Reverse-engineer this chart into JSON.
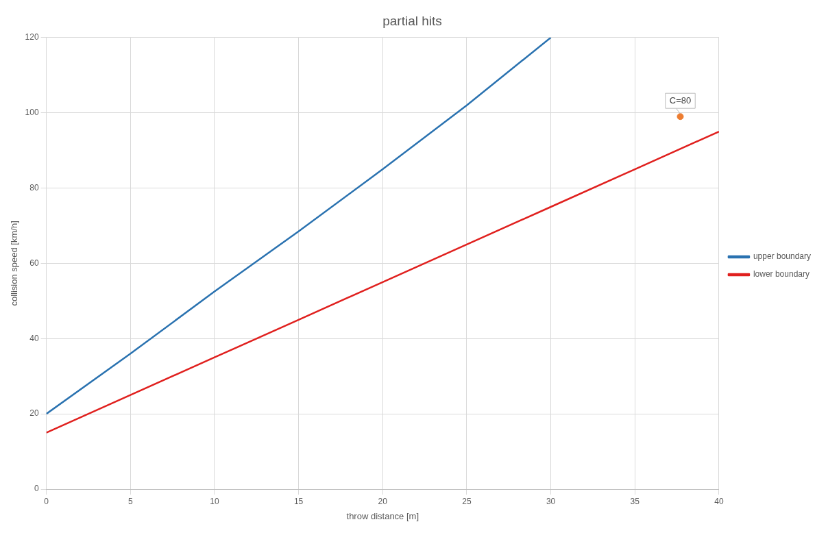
{
  "chart_data": {
    "type": "line",
    "title": "partial hits",
    "xlabel": "throw distance [m]",
    "ylabel": "collision speed [km/h]",
    "xlim": [
      0,
      40
    ],
    "xticks": [
      0,
      5,
      10,
      15,
      20,
      25,
      30,
      35,
      40
    ],
    "ylim": [
      0,
      120
    ],
    "yticks": [
      0,
      20,
      40,
      60,
      80,
      100,
      120
    ],
    "grid": true,
    "legend": "right",
    "marker": "none",
    "line_style": "solid",
    "series": [
      {
        "name": "upper boundary",
        "color": "#2a72b0",
        "x": [
          0,
          5,
          10,
          15,
          20,
          25,
          30
        ],
        "values": [
          20,
          36,
          52.5,
          68.5,
          85,
          102,
          120
        ]
      },
      {
        "name": "lower boundary",
        "color": "#e0201e",
        "x": [
          0,
          5,
          10,
          15,
          20,
          25,
          30,
          35,
          40
        ],
        "values": [
          15,
          25,
          35,
          45,
          55,
          65,
          75,
          85,
          95
        ]
      },
      {
        "type": "scatter",
        "marker": "circle",
        "color": "#ed7d31",
        "x": [
          37.7
        ],
        "values": [
          99
        ]
      }
    ],
    "annotations": [
      {
        "text": "C=80",
        "x": 37.7,
        "y": 99
      }
    ]
  }
}
